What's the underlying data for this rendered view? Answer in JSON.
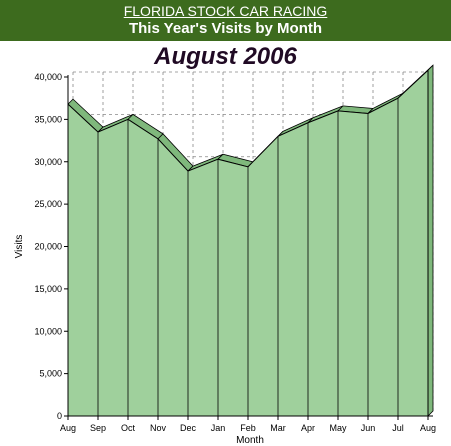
{
  "header": {
    "site_name": "FLORIDA STOCK CAR RACING",
    "subtitle": "This Year's Visits by Month",
    "period": "August 2006"
  },
  "colors": {
    "header_bg": "#3d6b1e",
    "area_fill": "#9fd09c",
    "area_top": "#7fb87c",
    "grid": "#888888"
  },
  "chart_data": {
    "type": "area",
    "title": "",
    "xlabel": "Month",
    "ylabel": "Visits",
    "ylim": [
      0,
      40000
    ],
    "y_ticks": [
      "0",
      "5,000",
      "10,000",
      "15,000",
      "20,000",
      "25,000",
      "30,000",
      "35,000",
      "40,000"
    ],
    "categories": [
      "Aug",
      "Sep",
      "Oct",
      "Nov",
      "Dec",
      "Jan",
      "Feb",
      "Mar",
      "Apr",
      "May",
      "Jun",
      "Jul",
      "Aug"
    ],
    "series": [
      {
        "values": [
          36800,
          33500,
          35000,
          32700,
          28900,
          30300,
          29400,
          33000,
          34600,
          36000,
          35700,
          37500,
          40800
        ]
      }
    ],
    "grid": true,
    "legend": "none"
  }
}
